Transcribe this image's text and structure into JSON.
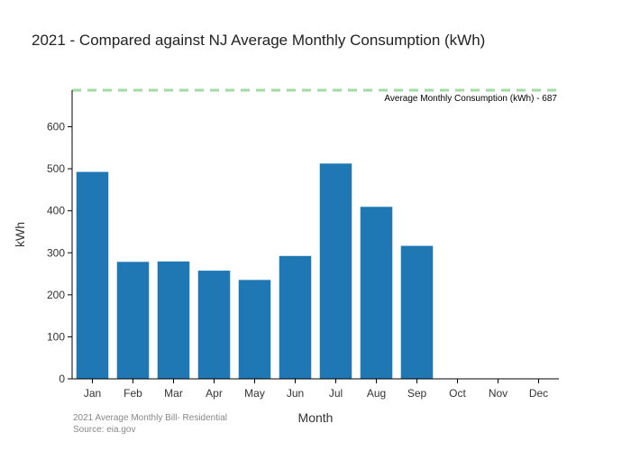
{
  "chart_data": {
    "type": "bar",
    "title": "2021 - Compared against NJ Average Monthly Consumption (kWh)",
    "xlabel": "Month",
    "ylabel": "kWh",
    "categories": [
      "Jan",
      "Feb",
      "Mar",
      "Apr",
      "May",
      "Jun",
      "Jul",
      "Aug",
      "Sep",
      "Oct",
      "Nov",
      "Dec"
    ],
    "values": [
      493,
      279,
      280,
      258,
      236,
      293,
      513,
      410,
      317,
      null,
      null,
      null
    ],
    "ylim": [
      0,
      687
    ],
    "yticks": [
      0,
      100,
      200,
      300,
      400,
      500,
      600
    ],
    "grid": false,
    "bar_color": "#1f77b4",
    "reference_line": {
      "value": 687,
      "label": "Average Monthly Consumption (kWh) - 687",
      "color": "#a3dba3"
    },
    "annotation": {
      "line1": "2021 Average Monthly Bill- Residential",
      "line2": "Source: eia.gov"
    }
  }
}
